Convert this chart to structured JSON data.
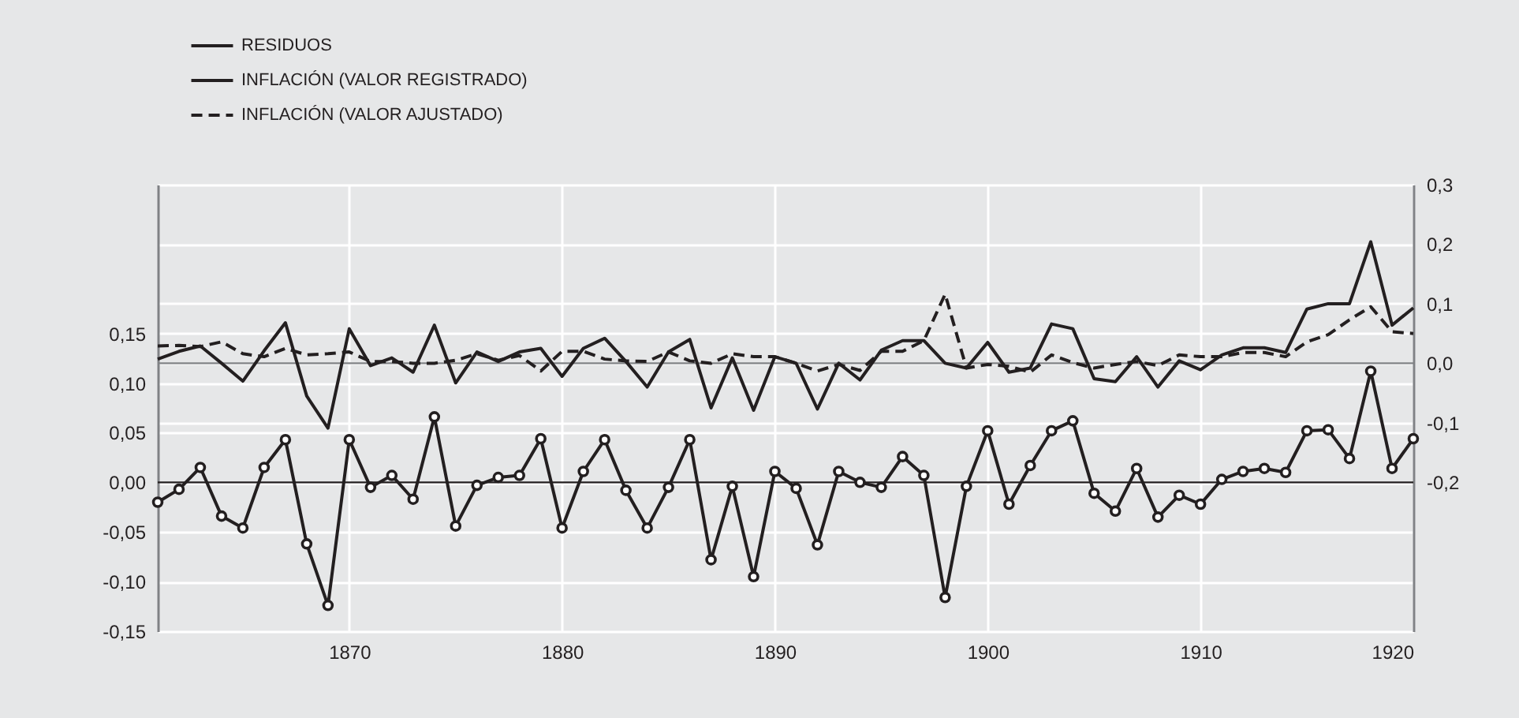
{
  "chart_data": {
    "type": "line",
    "legend": "top left",
    "grid": true,
    "xlim": [
      1861,
      1920
    ],
    "xticks": [
      1870,
      1880,
      1890,
      1900,
      1910,
      1920
    ],
    "ylim": [
      -0.15,
      0.3
    ],
    "yticks": [
      {
        "value": -0.15,
        "label": "-0,15"
      },
      {
        "value": -0.1,
        "label": "-0,10"
      },
      {
        "value": -0.05,
        "label": "-0,05"
      },
      {
        "value": 0,
        "label": "0,00"
      },
      {
        "value": 0.05,
        "label": "0,05"
      },
      {
        "value": 0.1,
        "label": "0,10"
      },
      {
        "value": 0.15,
        "label": "0,15"
      }
    ],
    "y2lim": [
      -0.45,
      0.3
    ],
    "y2ticks": [
      {
        "value": -0.2,
        "label": "-0,2"
      },
      {
        "value": -0.1,
        "label": "-0,1"
      },
      {
        "value": 0,
        "label": "0,0"
      },
      {
        "value": 0.1,
        "label": "0,1"
      },
      {
        "value": 0.2,
        "label": "0,2"
      },
      {
        "value": 0.3,
        "label": "0,3"
      }
    ],
    "x": [
      1861,
      1862,
      1863,
      1864,
      1865,
      1866,
      1867,
      1868,
      1869,
      1870,
      1871,
      1872,
      1873,
      1874,
      1875,
      1876,
      1877,
      1878,
      1879,
      1880,
      1881,
      1882,
      1883,
      1884,
      1885,
      1886,
      1887,
      1888,
      1889,
      1890,
      1891,
      1892,
      1893,
      1894,
      1895,
      1896,
      1897,
      1898,
      1899,
      1900,
      1901,
      1902,
      1903,
      1904,
      1905,
      1906,
      1907,
      1908,
      1909,
      1910,
      1911,
      1912,
      1913,
      1914,
      1915,
      1916,
      1917,
      1918,
      1919,
      1920
    ],
    "series": [
      {
        "name": "RESIDUOS",
        "color": "#231f20",
        "marker": "circle",
        "line_style": "solid",
        "values": [
          -0.02,
          -0.007,
          0.015,
          -0.034,
          -0.046,
          0.015,
          0.043,
          -0.062,
          -0.124,
          0.043,
          -0.005,
          0.007,
          -0.017,
          0.066,
          -0.044,
          -0.003,
          0.005,
          0.007,
          0.044,
          -0.046,
          0.011,
          0.043,
          -0.008,
          -0.046,
          -0.005,
          0.043,
          -0.078,
          -0.004,
          -0.095,
          0.011,
          -0.006,
          -0.063,
          0.011,
          0.0,
          -0.005,
          0.026,
          0.007,
          -0.116,
          -0.004,
          0.052,
          -0.022,
          0.017,
          0.052,
          0.062,
          -0.011,
          -0.029,
          0.014,
          -0.035,
          -0.013,
          -0.022,
          0.003,
          0.011,
          0.014,
          0.01,
          0.052,
          0.053,
          0.024,
          0.112,
          0.014,
          0.044
        ]
      },
      {
        "name": "INFLACIÓN (VALOR REGISTRADO)",
        "color": "#231f20",
        "axis": "y2",
        "line_style": "solid",
        "values": [
          0.007,
          0.02,
          0.029,
          0.0,
          -0.03,
          0.021,
          0.068,
          -0.055,
          -0.109,
          0.058,
          -0.004,
          0.009,
          -0.015,
          0.064,
          -0.033,
          0.019,
          0.003,
          0.019,
          0.025,
          -0.022,
          0.025,
          0.042,
          0.003,
          -0.04,
          0.019,
          0.04,
          -0.075,
          0.009,
          -0.079,
          0.011,
          0.0,
          -0.077,
          0.0,
          -0.028,
          0.022,
          0.038,
          0.038,
          0.0,
          -0.008,
          0.035,
          -0.015,
          -0.008,
          0.066,
          0.058,
          -0.026,
          -0.031,
          0.011,
          -0.04,
          0.004,
          -0.011,
          0.014,
          0.026,
          0.026,
          0.018,
          0.091,
          0.1,
          0.1,
          0.204,
          0.064,
          0.093
        ]
      },
      {
        "name": "INFLACIÓN (VALOR AJUSTADO)",
        "color": "#231f20",
        "axis": "y2",
        "line_style": "dashed",
        "values": [
          0.029,
          0.03,
          0.028,
          0.036,
          0.016,
          0.011,
          0.025,
          0.014,
          0.016,
          0.019,
          0.003,
          0.003,
          0.0,
          0.0,
          0.005,
          0.016,
          0.005,
          0.013,
          -0.013,
          0.02,
          0.02,
          0.007,
          0.004,
          0.003,
          0.019,
          0.004,
          0.0,
          0.016,
          0.011,
          0.011,
          0.0,
          -0.013,
          -0.002,
          -0.012,
          0.02,
          0.02,
          0.038,
          0.116,
          -0.008,
          -0.002,
          -0.005,
          -0.015,
          0.014,
          0.001,
          -0.008,
          -0.002,
          0.003,
          -0.004,
          0.014,
          0.011,
          0.011,
          0.018,
          0.018,
          0.011,
          0.036,
          0.048,
          0.073,
          0.095,
          0.053,
          0.05
        ]
      }
    ],
    "ref_lines": [
      {
        "axis": "y",
        "value": 0,
        "color": "#231f20"
      },
      {
        "axis": "y2",
        "value": 0,
        "color": "#808285"
      }
    ]
  }
}
